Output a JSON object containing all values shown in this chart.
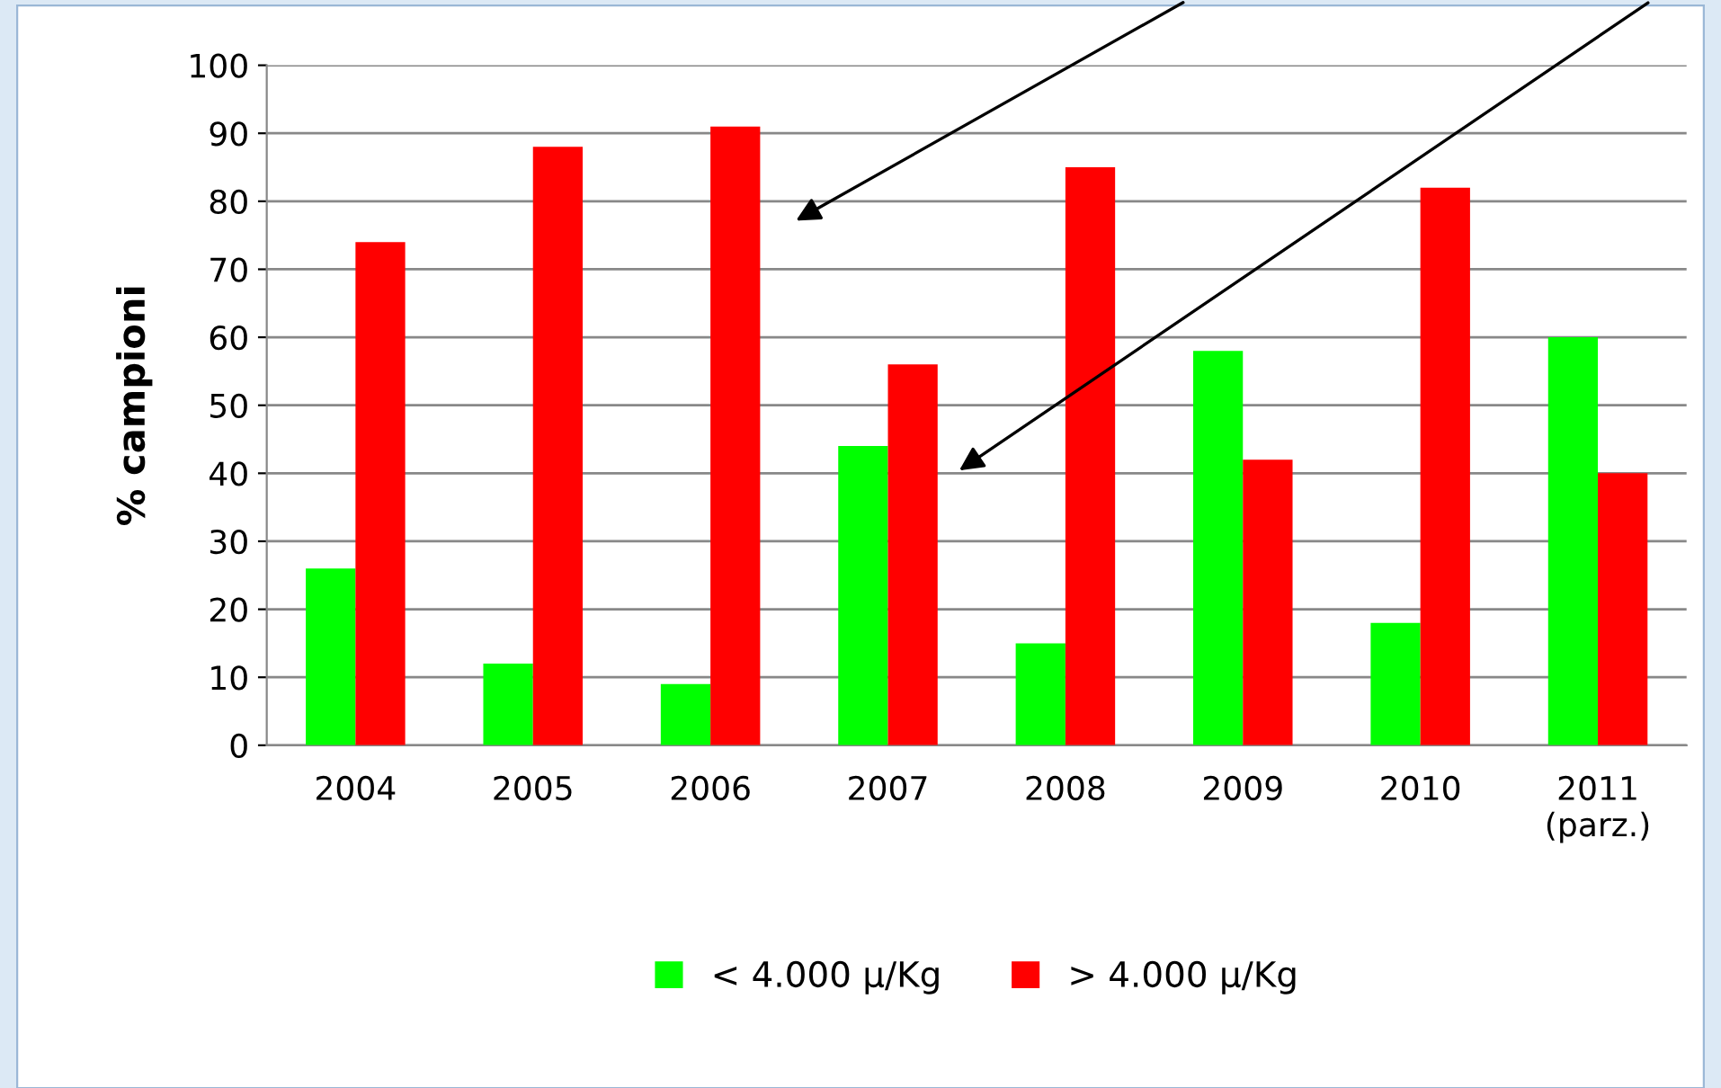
{
  "chart_data": {
    "type": "bar",
    "categories": [
      "2004",
      "2005",
      "2006",
      "2007",
      "2008",
      "2009",
      "2010",
      "2011\n(parz.)"
    ],
    "series": [
      {
        "name": "< 4.000 μ/Kg",
        "color": "#00ff00",
        "values": [
          26,
          12,
          9,
          44,
          15,
          58,
          18,
          60
        ]
      },
      {
        "name": "> 4.000 μ/Kg",
        "color": "#ff0000",
        "values": [
          74,
          88,
          91,
          56,
          85,
          42,
          82,
          40
        ]
      }
    ],
    "ylabel": "% campioni",
    "ylim": [
      0,
      100
    ],
    "yticks": [
      0,
      10,
      20,
      30,
      40,
      50,
      60,
      70,
      80,
      90,
      100
    ],
    "grid": "y",
    "legend": "bottom"
  }
}
